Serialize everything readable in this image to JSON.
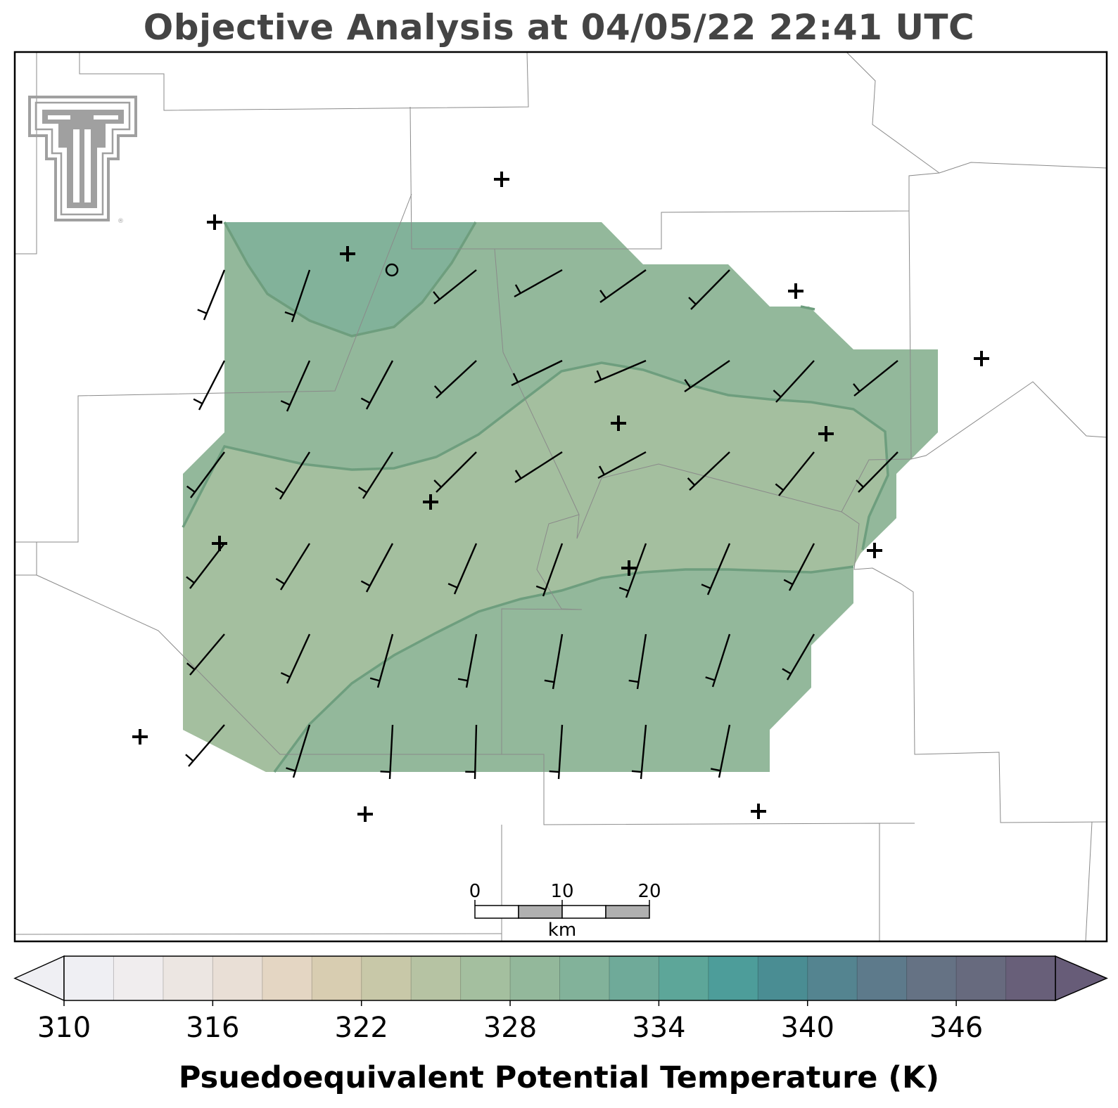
{
  "title": "Objective Analysis at 04/05/22 22:41 UTC",
  "colorbar": {
    "label": "Psuedoequivalent Potential Temperature (K)",
    "ticks": [
      "310",
      "316",
      "322",
      "328",
      "334",
      "340",
      "346"
    ],
    "tick_values": [
      310,
      316,
      322,
      328,
      334,
      340,
      346
    ],
    "min": 310,
    "max": 350,
    "step": 2,
    "extend": "both",
    "colors": [
      "#efeff3",
      "#f0edee",
      "#ece6e2",
      "#e9dfd6",
      "#e4d6c3",
      "#d8cdb1",
      "#c8c8a8",
      "#b6c3a3",
      "#a4bf9f",
      "#93b89b",
      "#82b29a",
      "#6faa99",
      "#5da699",
      "#4d9d9a",
      "#4a8d93",
      "#548490",
      "#5d7a8b",
      "#657284",
      "#676a7e",
      "#685f79"
    ],
    "under_color": "#efeff3",
    "over_color": "#675c78"
  },
  "scale_bar": {
    "labels": [
      "0",
      "10",
      "20"
    ],
    "unit": "km"
  },
  "logo": {
    "name": "texas-tech-double-t-logo",
    "color": "#a0a0a0"
  },
  "chart_data": {
    "type": "contour-map",
    "variable": "Psuedoequivalent Potential Temperature (K)",
    "valid_time": "04/05/22 22:41 UTC",
    "analysis_fill_bands": [
      {
        "range": "326-328 K",
        "color": "#93b89b"
      },
      {
        "range": "324-326 K",
        "color": "#a4bf9f"
      },
      {
        "range": "328-330 K",
        "color": "#82b29a"
      }
    ],
    "contour_line_color": "#6e9e7e",
    "station_marker_count": 17,
    "wind_barb_grid": {
      "rows": 6,
      "columns": 9,
      "barb_count": 54
    }
  }
}
